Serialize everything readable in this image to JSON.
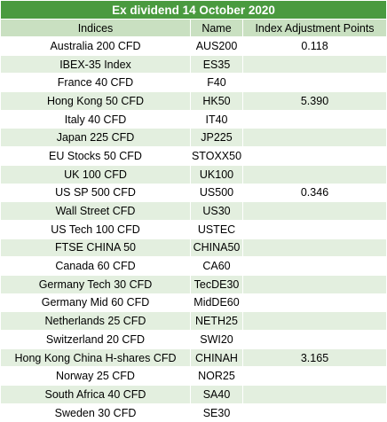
{
  "title": "Ex dividend 14 October 2020",
  "columns": [
    "Indices",
    "Name",
    "Index Adjustment Points"
  ],
  "rows": [
    {
      "index": "Australia 200 CFD",
      "name": "AUS200",
      "points": "0.118"
    },
    {
      "index": "IBEX-35 Index",
      "name": "ES35",
      "points": ""
    },
    {
      "index": "France 40 CFD",
      "name": "F40",
      "points": ""
    },
    {
      "index": "Hong Kong 50 CFD",
      "name": "HK50",
      "points": "5.390"
    },
    {
      "index": "Italy 40 CFD",
      "name": "IT40",
      "points": ""
    },
    {
      "index": "Japan 225 CFD",
      "name": "JP225",
      "points": ""
    },
    {
      "index": "EU Stocks 50 CFD",
      "name": "STOXX50",
      "points": ""
    },
    {
      "index": "UK 100 CFD",
      "name": "UK100",
      "points": ""
    },
    {
      "index": "US SP 500 CFD",
      "name": "US500",
      "points": "0.346"
    },
    {
      "index": "Wall Street CFD",
      "name": "US30",
      "points": ""
    },
    {
      "index": "US Tech 100 CFD",
      "name": "USTEC",
      "points": ""
    },
    {
      "index": "FTSE CHINA 50",
      "name": "CHINA50",
      "points": ""
    },
    {
      "index": "Canada 60 CFD",
      "name": "CA60",
      "points": ""
    },
    {
      "index": "Germany Tech 30 CFD",
      "name": "TecDE30",
      "points": ""
    },
    {
      "index": "Germany Mid 60 CFD",
      "name": "MidDE60",
      "points": ""
    },
    {
      "index": "Netherlands 25 CFD",
      "name": "NETH25",
      "points": ""
    },
    {
      "index": "Switzerland 20 CFD",
      "name": "SWI20",
      "points": ""
    },
    {
      "index": "Hong Kong China H-shares CFD",
      "name": "CHINAH",
      "points": "3.165"
    },
    {
      "index": "Norway 25 CFD",
      "name": "NOR25",
      "points": ""
    },
    {
      "index": "South Africa 40 CFD",
      "name": "SA40",
      "points": ""
    },
    {
      "index": "Sweden 30 CFD",
      "name": "SE30",
      "points": ""
    }
  ]
}
